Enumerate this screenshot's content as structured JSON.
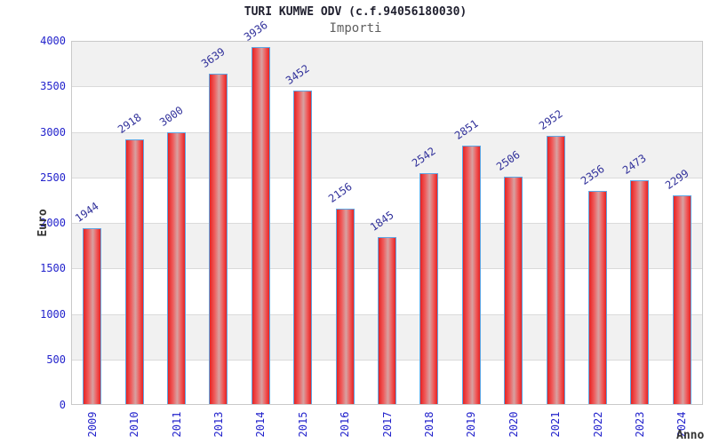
{
  "chart_data": {
    "type": "bar",
    "title": "TURI KUMWE ODV (c.f.94056180030)",
    "subtitle": "Importi",
    "xlabel": "Anno",
    "ylabel": "Euro",
    "categories": [
      "2009",
      "2010",
      "2011",
      "2013",
      "2014",
      "2015",
      "2016",
      "2017",
      "2018",
      "2019",
      "2020",
      "2021",
      "2022",
      "2023",
      "2024"
    ],
    "values": [
      1944,
      2918,
      3000,
      3639,
      3936,
      3452,
      2156,
      1845,
      2542,
      2851,
      2506,
      2952,
      2356,
      2473,
      2299
    ],
    "ylim": [
      0,
      4000
    ],
    "yticks": [
      0,
      500,
      1000,
      1500,
      2000,
      2500,
      3000,
      3500,
      4000
    ],
    "grid": true,
    "legend": "none",
    "colors": {
      "bar_fill_edge": "#e62323",
      "bar_fill_mid": "#ef5a5a",
      "bar_fill_center": "#d7a2a2",
      "bar_border": "#5ea6e3",
      "tick_text": "#2323cc",
      "value_label_text": "#32329b",
      "band_gray": "#f1f1f1",
      "band_white": "#ffffff",
      "gridline": "#dadada",
      "plot_border": "#c9c9c9",
      "title_text": "#1f1f2e",
      "subtitle_text": "#5f5f5f",
      "axis_label_text": "#333333"
    }
  }
}
